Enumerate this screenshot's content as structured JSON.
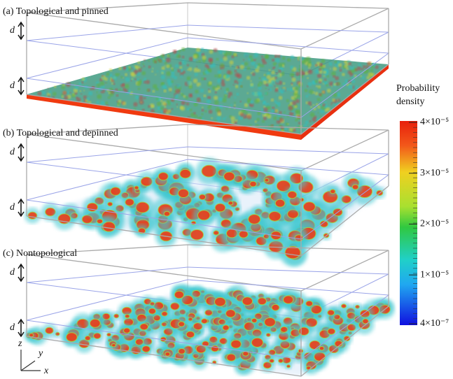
{
  "panels": [
    {
      "label": "(a) Topological and pinned",
      "d_labels": [
        "d",
        "d"
      ]
    },
    {
      "label": "(b) Topological and depinned",
      "d_labels": [
        "d",
        "d"
      ]
    },
    {
      "label": "(c) Nontopological",
      "d_labels": [
        "d",
        "d"
      ]
    }
  ],
  "axes": {
    "z": "z",
    "y": "y",
    "x": "x"
  },
  "colorbar": {
    "title": "Probability density",
    "lim": [
      4e-07,
      4e-05
    ],
    "ticks": [
      {
        "value": 4e-05,
        "label": "4×10⁻⁵"
      },
      {
        "value": 3e-05,
        "label": "3×10⁻⁵"
      },
      {
        "value": 2e-05,
        "label": "2×10⁻⁵"
      },
      {
        "value": 1e-05,
        "label": "1×10⁻⁵"
      },
      {
        "value": 4e-07,
        "label": "4×10⁻⁷"
      }
    ]
  }
}
